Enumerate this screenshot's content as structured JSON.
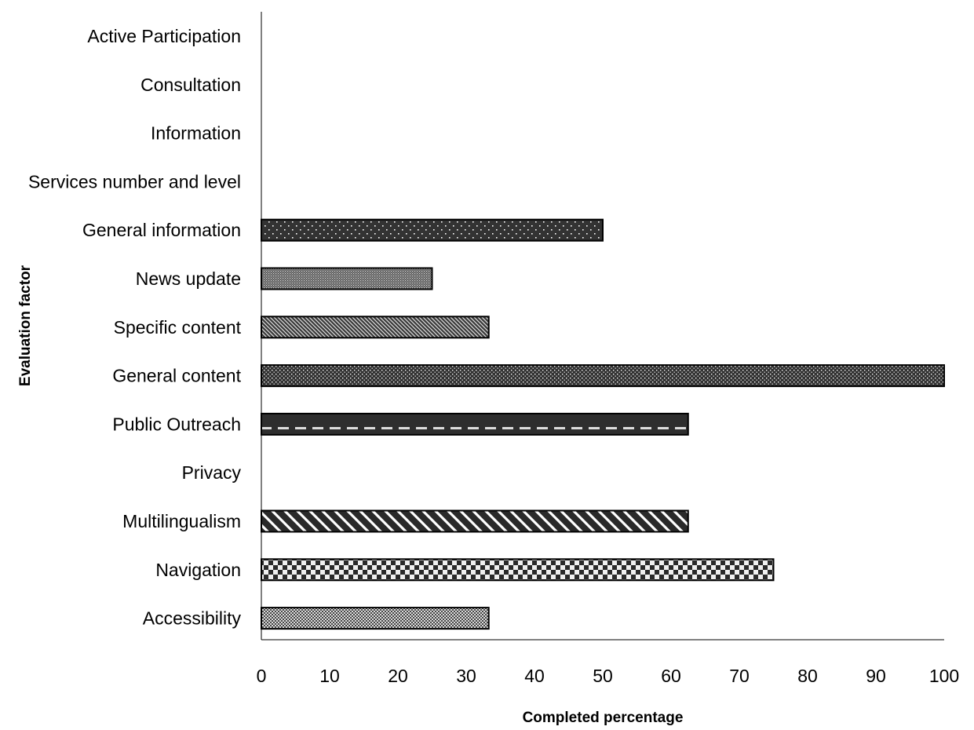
{
  "chart_data": {
    "type": "bar",
    "orientation": "horizontal",
    "categories": [
      "Active Participation",
      "Consultation",
      "Information",
      "Services number and level",
      "General information",
      "News update",
      "Specific content",
      "General content",
      "Public Outreach",
      "Privacy",
      "Multilingualism",
      "Navigation",
      "Accessibility"
    ],
    "values": [
      0,
      0,
      0,
      0,
      50,
      25,
      33.3,
      100,
      62.5,
      0,
      62.5,
      75,
      33.3
    ],
    "patterns": [
      "none",
      "none",
      "none",
      "none",
      "sparse-dots",
      "fine-dots",
      "diagonal-hatch",
      "dense-dots",
      "dashes",
      "none",
      "diagonal-stripes",
      "checkerboard",
      "fine-checker"
    ],
    "xlabel": "Completed percentage",
    "ylabel": "Evaluation factor",
    "xlim": [
      0,
      100
    ],
    "xticks": [
      "0",
      "10",
      "20",
      "30",
      "40",
      "50",
      "60",
      "70",
      "80",
      "90",
      "100"
    ],
    "grid": false,
    "colors": {
      "bar_fill": "#333333",
      "bar_pattern": "#ffffff",
      "axis": "#000000"
    }
  }
}
